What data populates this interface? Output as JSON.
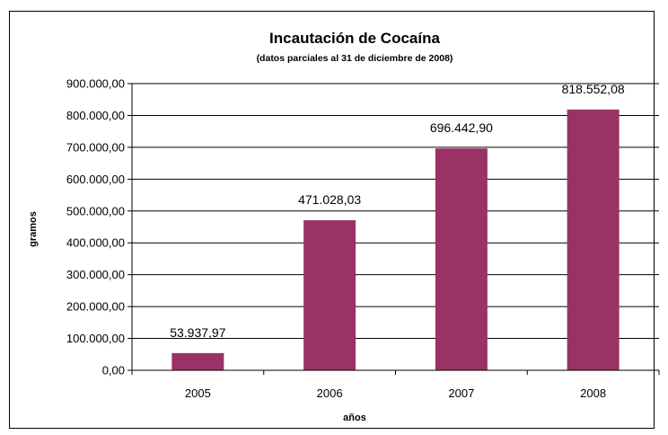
{
  "chart_data": {
    "type": "bar",
    "title": "Incautación de Cocaína",
    "subtitle": "(datos parciales al 31 de diciembre de 2008)",
    "xlabel": "años",
    "ylabel": "gramos",
    "categories": [
      "2005",
      "2006",
      "2007",
      "2008"
    ],
    "values": [
      53937.97,
      471028.03,
      696442.9,
      818552.08
    ],
    "value_labels": [
      "53.937,97",
      "471.028,03",
      "696.442,90",
      "818.552,08"
    ],
    "ylim": [
      0,
      900000
    ],
    "yticks": [
      0,
      100000,
      200000,
      300000,
      400000,
      500000,
      600000,
      700000,
      800000,
      900000
    ],
    "ytick_labels": [
      "0,00",
      "100.000,00",
      "200.000,00",
      "300.000,00",
      "400.000,00",
      "500.000,00",
      "600.000,00",
      "700.000,00",
      "800.000,00",
      "900.000,00"
    ],
    "bar_color": "#993366",
    "grid": true,
    "legend": "none"
  }
}
